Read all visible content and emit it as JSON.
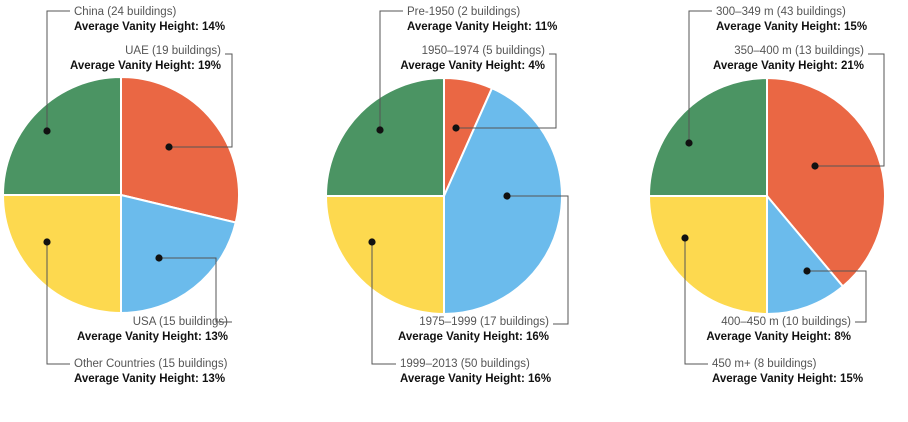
{
  "colors": {
    "green": "#4b9463",
    "orange": "#ea6744",
    "blue": "#6bbbec",
    "yellow": "#fdd94f"
  },
  "chart_data": [
    {
      "type": "pie",
      "value_label": "Average Vanity Height:",
      "slices": [
        {
          "name": "China (24 buildings)",
          "count": 24,
          "avg_vanity": "14%",
          "color": "green"
        },
        {
          "name": "UAE (19 buildings)",
          "count": 19,
          "avg_vanity": "19%",
          "color": "orange"
        },
        {
          "name": "USA (15 buildings)",
          "count": 15,
          "avg_vanity": "13%",
          "color": "blue"
        },
        {
          "name": "Other Countries (15 buildings)",
          "count": 15,
          "avg_vanity": "13%",
          "color": "yellow"
        }
      ]
    },
    {
      "type": "pie",
      "value_label": "Average Vanity Height:",
      "slices": [
        {
          "name": "Pre-1950 (2 buildings)",
          "count": 2,
          "avg_vanity": "11%",
          "color": "green"
        },
        {
          "name": "1950–1974 (5 buildings)",
          "count": 5,
          "avg_vanity": "4%",
          "color": "orange"
        },
        {
          "name": "1975–1999 (17 buildings)",
          "count": 17,
          "avg_vanity": "16%",
          "color": "blue"
        },
        {
          "name": "1999–2013 (50 buildings)",
          "count": 50,
          "avg_vanity": "16%",
          "color": "yellow"
        }
      ]
    },
    {
      "type": "pie",
      "value_label": "Average Vanity Height:",
      "slices": [
        {
          "name": "300–349 m (43 buildings)",
          "count": 43,
          "avg_vanity": "15%",
          "color": "green"
        },
        {
          "name": "350–400 m (13 buildings)",
          "count": 13,
          "avg_vanity": "21%",
          "color": "orange"
        },
        {
          "name": "400–450 m (10 buildings)",
          "count": 10,
          "avg_vanity": "8%",
          "color": "blue"
        },
        {
          "name": "450 m+ (8 buildings)",
          "count": 8,
          "avg_vanity": "15%",
          "color": "yellow"
        }
      ]
    }
  ]
}
